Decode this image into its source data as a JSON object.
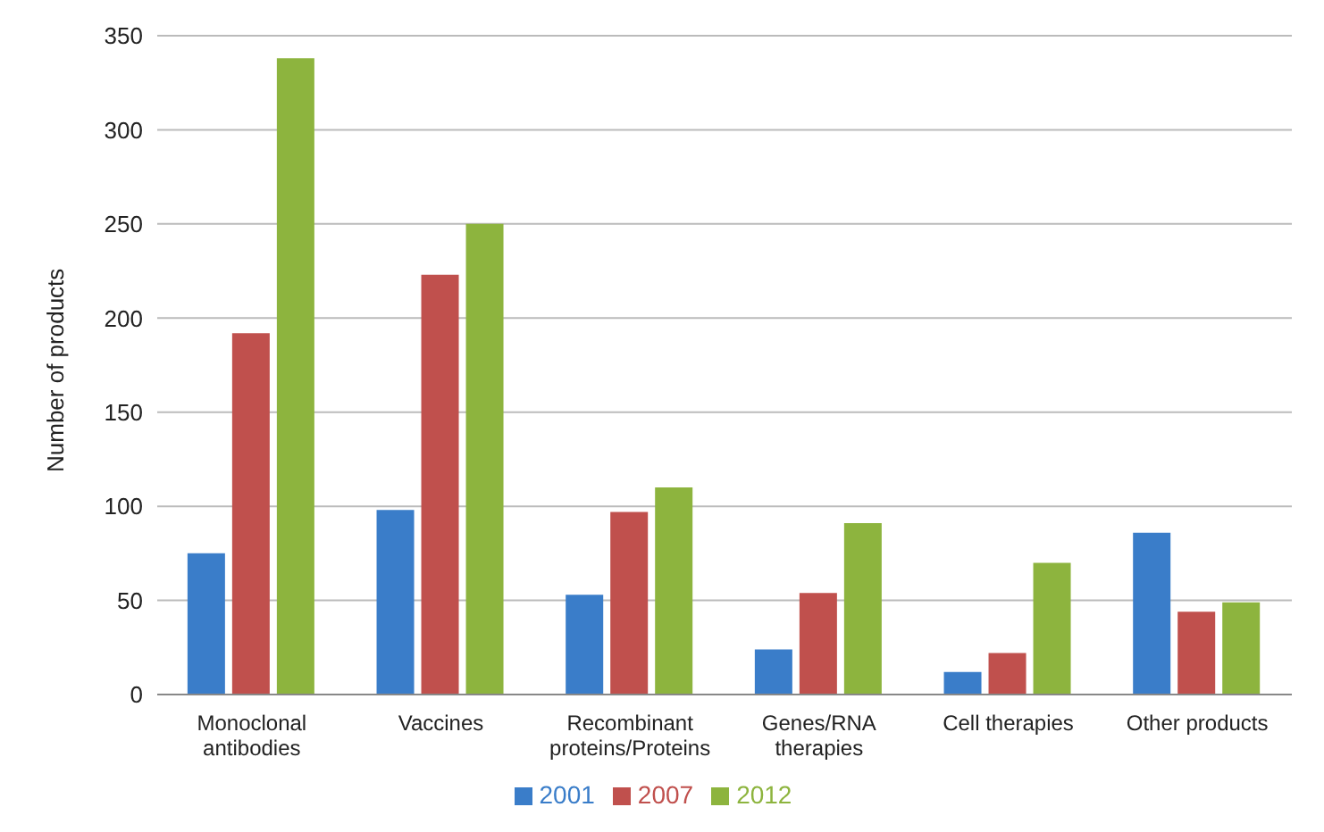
{
  "chart_data": {
    "type": "bar",
    "ylabel": "Number of products",
    "categories": [
      "Monoclonal antibodies",
      "Vaccines",
      "Recombinant proteins/Proteins",
      "Genes/RNA therapies",
      "Cell therapies",
      "Other products"
    ],
    "series": [
      {
        "name": "2001",
        "color": "#3a7dc9",
        "values": [
          75,
          98,
          53,
          24,
          12,
          86
        ]
      },
      {
        "name": "2007",
        "color": "#c0504d",
        "values": [
          192,
          223,
          97,
          54,
          22,
          44
        ]
      },
      {
        "name": "2012",
        "color": "#8db43e",
        "values": [
          338,
          250,
          110,
          91,
          70,
          49
        ]
      }
    ],
    "ylim": [
      0,
      350
    ],
    "yticks": [
      0,
      50,
      100,
      150,
      200,
      250,
      300,
      350
    ],
    "grid": "y",
    "legend": "bottom"
  }
}
